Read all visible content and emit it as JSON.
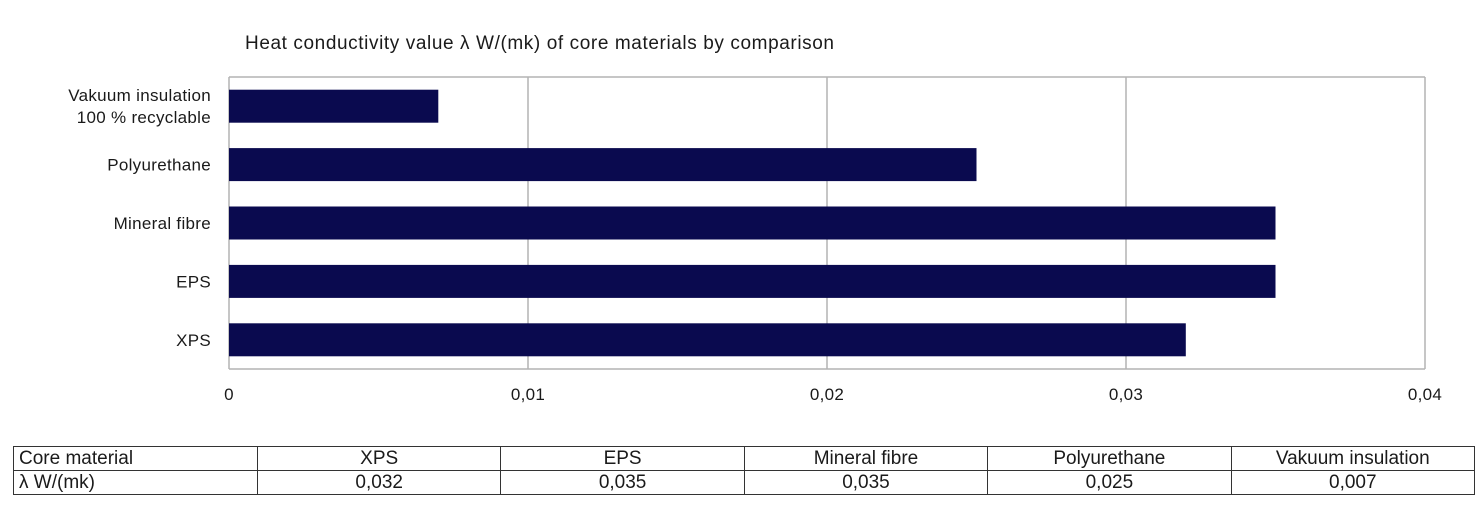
{
  "chart_data": {
    "type": "bar",
    "orientation": "horizontal",
    "title": "Heat conductivity value λ W/(mk) of core materials by comparison",
    "categories": [
      [
        "Vakuum insulation",
        "100 % recyclable"
      ],
      [
        "Polyurethane"
      ],
      [
        "Mineral fibre"
      ],
      [
        "EPS"
      ],
      [
        "XPS"
      ]
    ],
    "values": [
      0.007,
      0.025,
      0.035,
      0.035,
      0.032
    ],
    "xlim": [
      0,
      0.04
    ],
    "xticks": [
      0,
      0.01,
      0.02,
      0.03,
      0.04
    ],
    "xtick_labels": [
      "0",
      "0,01",
      "0,02",
      "0,03",
      "0,04"
    ],
    "xlabel": "",
    "ylabel": "",
    "grid": "vertical",
    "bar_color": "#0a0a4f",
    "gridline_color": "#b3b3b3",
    "legend": "none"
  },
  "table": {
    "header_label": "Core material",
    "value_label": "λ W/(mk)",
    "columns": [
      "XPS",
      "EPS",
      "Mineral fibre",
      "Polyurethane",
      "Vakuum insulation"
    ],
    "values": [
      "0,032",
      "0,035",
      "0,035",
      "0,025",
      "0,007"
    ]
  }
}
